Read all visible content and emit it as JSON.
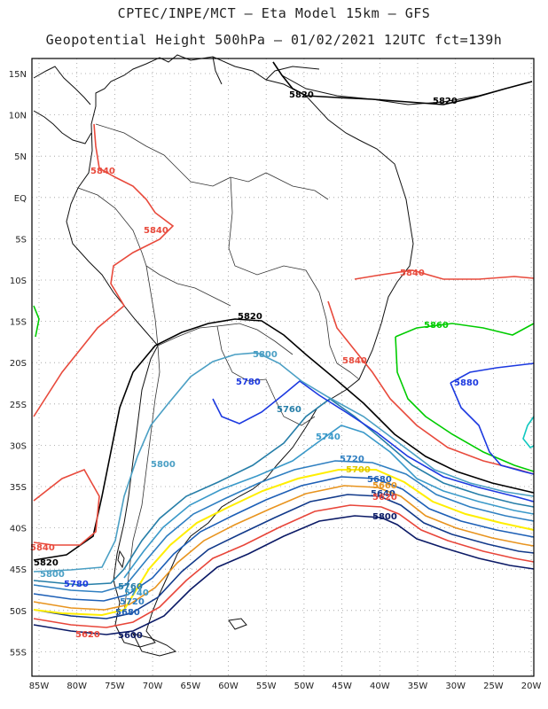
{
  "title": {
    "line1": "CPTEC/INPE/MCT –  Eta Model 15km – GFS",
    "line2": "Geopotential Height 500hPa – 01/02/2021 12UTC fct=139h"
  },
  "axes": {
    "lat_labels": [
      "15N",
      "10N",
      "5N",
      "EQ",
      "5S",
      "10S",
      "15S",
      "20S",
      "25S",
      "30S",
      "35S",
      "40S",
      "45S",
      "50S",
      "55S"
    ],
    "lon_labels": [
      "85W",
      "80W",
      "75W",
      "70W",
      "65W",
      "60W",
      "55W",
      "50W",
      "45W",
      "40W",
      "35W",
      "30W",
      "25W",
      "20W"
    ]
  },
  "colors": {
    "c5600": "#0b1a66",
    "c5620": "#e8463a",
    "c5640": "#123a8a",
    "c5660": "#e8941f",
    "c5680": "#1d5fb6",
    "c5700": "#ffee00",
    "c5720": "#2f7fc1",
    "c5740": "#3a99c9",
    "c5760": "#267ea8",
    "c5780": "#1c39e0",
    "c5800": "#4a9fc4",
    "c5820": "#000000",
    "c5840": "#e84a3c",
    "c5860": "#00cc00",
    "c5880": "#1c39e0",
    "c5900": "#10c8c0",
    "coast": "#111111",
    "border": "#333333",
    "grid": "#9a9a9a"
  },
  "labels": {
    "l5820a": "5820",
    "l5820b": "5820",
    "l5820c": "5820",
    "l5820d": "5820",
    "l5840a": "5840",
    "l5840b": "5840",
    "l5840c": "5840",
    "l5840d": "5840",
    "l5840e": "5840",
    "l5860": "5860",
    "l5880": "5880",
    "l5800a": "5800",
    "l5800b": "5800",
    "l5800c": "5800",
    "l5800d": "5800",
    "l5780a": "5780",
    "l5780b": "5780",
    "l5760a": "5760",
    "l5760b": "5760",
    "l5740a": "5740",
    "l5740b": "5740",
    "l5720a": "5720",
    "l5720b": "5720",
    "l5700": "5700",
    "l5680a": "5680",
    "l5680b": "5680",
    "l5660": "5660",
    "l5640": "5640",
    "l5620a": "5620",
    "l5620b": "5620",
    "l5600a": "5600",
    "l5600b": "5600"
  }
}
